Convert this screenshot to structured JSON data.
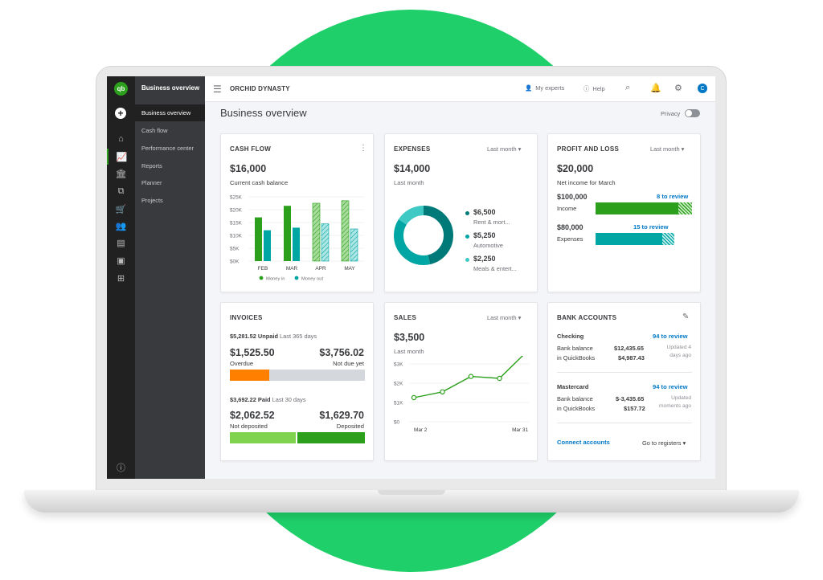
{
  "sidebar": {
    "header": "Business overview",
    "items": [
      {
        "label": "Business overview"
      },
      {
        "label": "Cash flow"
      },
      {
        "label": "Performance center"
      },
      {
        "label": "Reports"
      },
      {
        "label": "Planner"
      },
      {
        "label": "Projects"
      }
    ],
    "logo_text": "qb",
    "avatar_initial": "C"
  },
  "topbar": {
    "company": "ORCHID DYNASTY",
    "my_experts": "My experts",
    "help": "Help"
  },
  "page": {
    "title": "Business overview",
    "privacy_label": "Privacy"
  },
  "cash_flow": {
    "title": "CASH FLOW",
    "amount": "$16,000",
    "caption": "Current cash balance",
    "chart_data": {
      "type": "bar",
      "categories": [
        "FEB",
        "MAR",
        "APR",
        "MAY"
      ],
      "series": [
        {
          "name": "Money in",
          "values": [
            17000,
            21500,
            22500,
            23500
          ],
          "color": "#2ca01c"
        },
        {
          "name": "Money out",
          "values": [
            12000,
            13000,
            14500,
            12500
          ],
          "color": "#00a6a4"
        }
      ],
      "projected_categories": [
        "APR",
        "MAY"
      ],
      "yticks": [
        "$25K",
        "$20K",
        "$15K",
        "$10K",
        "$5K",
        "$0K"
      ],
      "ylim": [
        0,
        25000
      ]
    }
  },
  "expenses": {
    "title": "EXPENSES",
    "period": "Last month",
    "amount": "$14,000",
    "caption": "Last month",
    "chart_data": {
      "type": "pie",
      "slices": [
        {
          "label": "Rent & mort...",
          "value": 6500,
          "amount": "$6,500",
          "color": "#007a78"
        },
        {
          "label": "Automotive",
          "value": 5250,
          "amount": "$5,250",
          "color": "#00a6a4"
        },
        {
          "label": "Meals & entert...",
          "value": 2250,
          "amount": "$2,250",
          "color": "#3fc9c5"
        }
      ]
    }
  },
  "profit_loss": {
    "title": "PROFIT AND LOSS",
    "period": "Last month",
    "amount": "$20,000",
    "caption": "Net income for March",
    "income": {
      "amount": "$100,000",
      "label": "Income",
      "review": "8 to review",
      "fill": 0.86
    },
    "expenses": {
      "amount": "$80,000",
      "label": "Expenses",
      "review": "15 to review",
      "fill": 0.85
    }
  },
  "invoices": {
    "title": "INVOICES",
    "unpaid_amount": "$5,281.52 Unpaid",
    "unpaid_period": "Last 365 days",
    "overdue_amount": "$1,525.50",
    "overdue_label": "Overdue",
    "not_due_amount": "$3,756.02",
    "not_due_label": "Not due yet",
    "unpaid_split": 0.289,
    "paid_amount": "$3,692.22 Paid",
    "paid_period": "Last 30 days",
    "not_deposited_amount": "$2,062.52",
    "not_deposited_label": "Not deposited",
    "deposited_amount": "$1,629.70",
    "deposited_label": "Deposited",
    "paid_split": 0.5
  },
  "sales": {
    "title": "SALES",
    "period": "Last month",
    "amount": "$3,500",
    "caption": "Last month",
    "chart_data": {
      "type": "line",
      "x_labels": [
        "Mar 2",
        "Mar 31"
      ],
      "values": [
        1250,
        1550,
        2350,
        2250,
        3700
      ],
      "yticks": [
        "$3K",
        "$2K",
        "$1K",
        "$0"
      ],
      "ylim": [
        0,
        3000
      ]
    }
  },
  "bank_accounts": {
    "title": "BANK ACCOUNTS",
    "accounts": [
      {
        "name": "Checking",
        "review": "94 to review",
        "bank_label": "Bank balance",
        "bank_amount": "$12,435.65",
        "qb_label": "in QuickBooks",
        "qb_amount": "$4,987.43",
        "updated_line1": "Updated 4",
        "updated_line2": "days ago"
      },
      {
        "name": "Mastercard",
        "review": "94 to review",
        "bank_label": "Bank balance",
        "bank_amount": "$-3,435.65",
        "qb_label": "in QuickBooks",
        "qb_amount": "$157.72",
        "updated_line1": "Updated",
        "updated_line2": "moments ago"
      }
    ],
    "connect": "Connect accounts",
    "registers": "Go to registers"
  }
}
